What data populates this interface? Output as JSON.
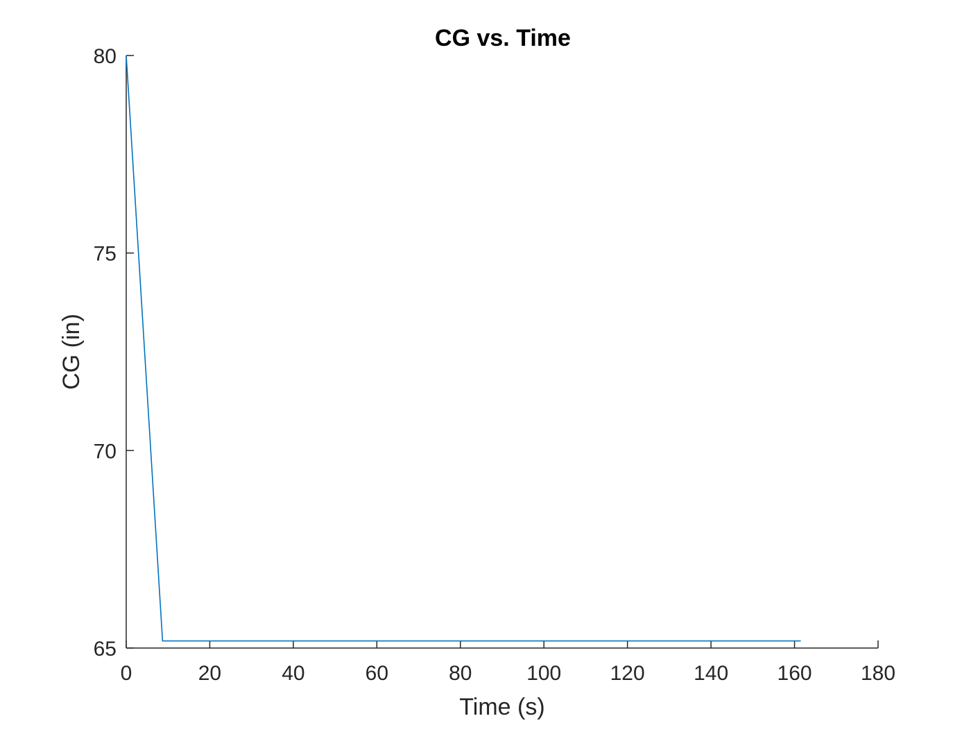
{
  "chart_data": {
    "type": "line",
    "title": "CG vs. Time",
    "xlabel": "Time (s)",
    "ylabel": "CG (in)",
    "xlim": [
      0,
      180
    ],
    "ylim": [
      65,
      80
    ],
    "xticks": [
      0,
      20,
      40,
      60,
      80,
      100,
      120,
      140,
      160,
      180
    ],
    "yticks": [
      65,
      70,
      75,
      80
    ],
    "grid": false,
    "line_color": "#0072BD",
    "axis_color": "#262626",
    "series": [
      {
        "x": [
          0,
          8.7,
          161.5
        ],
        "y": [
          80,
          65.18,
          65.18
        ]
      }
    ]
  }
}
